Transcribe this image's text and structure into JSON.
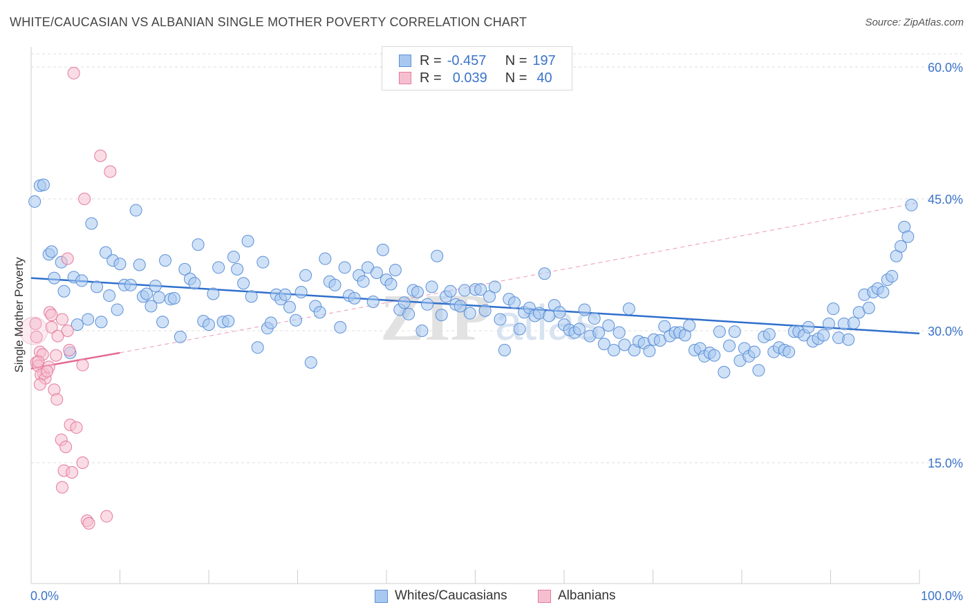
{
  "title": "WHITE/CAUCASIAN VS ALBANIAN SINGLE MOTHER POVERTY CORRELATION CHART",
  "source": "Source: ZipAtlas.com",
  "watermark": "ZIPatlas",
  "legend": {
    "rows": [
      {
        "r_label": "R =",
        "r_value": "-0.457",
        "n_label": "N =",
        "n_value": "197",
        "color": "#a8c8f0",
        "border": "#5b8fd6"
      },
      {
        "r_label": "R =",
        "r_value": "0.039",
        "n_label": "N =",
        "n_value": "40",
        "color": "#f6bfd0",
        "border": "#e47a9e"
      }
    ]
  },
  "bottom_legend": [
    {
      "label": "Whites/Caucasians",
      "color": "#a8c8f0",
      "border": "#5b8fd6"
    },
    {
      "label": "Albanians",
      "color": "#f6bfd0",
      "border": "#e47a9e"
    }
  ],
  "chart_data": {
    "type": "scatter",
    "title": "WHITE/CAUCASIAN VS ALBANIAN SINGLE MOTHER POVERTY CORRELATION CHART",
    "xlabel": "",
    "ylabel": "Single Mother Poverty",
    "xlim": [
      0,
      100
    ],
    "ylim": [
      0,
      60
    ],
    "x_tick_labels": [
      "0.0%",
      "100.0%"
    ],
    "y_ticks": [
      15,
      30,
      45,
      60
    ],
    "y_tick_labels": [
      "15.0%",
      "30.0%",
      "45.0%",
      "60.0%"
    ],
    "grid": true,
    "legend_position": "top-center",
    "series": [
      {
        "name": "Whites/Caucasians",
        "color": "#a8c8f0",
        "edge": "#5b8fd6",
        "trend": {
          "x": [
            0,
            100
          ],
          "y": [
            36.0,
            29.7
          ],
          "color": "#2f6fcc",
          "style": "solid"
        },
        "points": [
          [
            0.4,
            44.7
          ],
          [
            1.0,
            46.5
          ],
          [
            1.4,
            46.6
          ],
          [
            2.0,
            38.7
          ],
          [
            2.3,
            39.0
          ],
          [
            2.6,
            36.0
          ],
          [
            3.4,
            37.8
          ],
          [
            3.7,
            34.5
          ],
          [
            4.4,
            27.5
          ],
          [
            4.8,
            36.1
          ],
          [
            5.2,
            30.7
          ],
          [
            5.7,
            35.7
          ],
          [
            6.4,
            31.3
          ],
          [
            6.8,
            42.2
          ],
          [
            7.4,
            35.0
          ],
          [
            7.9,
            31.0
          ],
          [
            8.4,
            38.9
          ],
          [
            8.8,
            34.0
          ],
          [
            9.2,
            38.0
          ],
          [
            9.7,
            32.4
          ],
          [
            10.0,
            37.6
          ],
          [
            10.5,
            35.2
          ],
          [
            11.2,
            35.2
          ],
          [
            11.8,
            43.7
          ],
          [
            12.2,
            37.5
          ],
          [
            12.6,
            33.9
          ],
          [
            13.0,
            34.2
          ],
          [
            13.5,
            32.8
          ],
          [
            14.0,
            35.1
          ],
          [
            14.4,
            33.8
          ],
          [
            14.8,
            31.0
          ],
          [
            15.1,
            38.0
          ],
          [
            15.7,
            33.6
          ],
          [
            16.1,
            33.7
          ],
          [
            16.8,
            29.3
          ],
          [
            17.3,
            37.0
          ],
          [
            17.9,
            35.9
          ],
          [
            18.4,
            35.4
          ],
          [
            18.8,
            39.8
          ],
          [
            19.4,
            31.1
          ],
          [
            20.0,
            30.7
          ],
          [
            20.5,
            34.2
          ],
          [
            21.1,
            37.2
          ],
          [
            21.6,
            31.0
          ],
          [
            22.2,
            31.1
          ],
          [
            22.8,
            38.4
          ],
          [
            23.2,
            37.0
          ],
          [
            23.9,
            35.4
          ],
          [
            24.4,
            40.2
          ],
          [
            24.8,
            33.9
          ],
          [
            25.5,
            28.1
          ],
          [
            26.1,
            37.8
          ],
          [
            26.6,
            30.3
          ],
          [
            27.0,
            30.9
          ],
          [
            27.6,
            34.1
          ],
          [
            28.1,
            33.6
          ],
          [
            28.6,
            34.1
          ],
          [
            29.1,
            32.7
          ],
          [
            29.8,
            31.2
          ],
          [
            30.4,
            34.4
          ],
          [
            30.9,
            36.3
          ],
          [
            31.5,
            26.4
          ],
          [
            32.0,
            32.8
          ],
          [
            32.5,
            32.1
          ],
          [
            33.1,
            38.2
          ],
          [
            33.6,
            35.6
          ],
          [
            34.2,
            35.2
          ],
          [
            34.8,
            30.4
          ],
          [
            35.3,
            37.2
          ],
          [
            35.8,
            34.0
          ],
          [
            36.4,
            33.7
          ],
          [
            36.9,
            36.3
          ],
          [
            37.4,
            35.6
          ],
          [
            37.9,
            37.2
          ],
          [
            38.5,
            33.3
          ],
          [
            38.9,
            36.6
          ],
          [
            39.6,
            39.2
          ],
          [
            40.0,
            35.8
          ],
          [
            40.5,
            35.3
          ],
          [
            41.0,
            36.9
          ],
          [
            41.5,
            32.4
          ],
          [
            42.0,
            33.2
          ],
          [
            42.5,
            31.9
          ],
          [
            43.0,
            34.6
          ],
          [
            43.5,
            34.4
          ],
          [
            44.0,
            30.0
          ],
          [
            44.6,
            33.0
          ],
          [
            45.1,
            35.0
          ],
          [
            45.7,
            38.5
          ],
          [
            46.2,
            31.8
          ],
          [
            46.7,
            33.9
          ],
          [
            47.2,
            34.5
          ],
          [
            47.8,
            33.0
          ],
          [
            48.3,
            32.8
          ],
          [
            48.8,
            34.6
          ],
          [
            49.4,
            32.0
          ],
          [
            50.0,
            34.7
          ],
          [
            50.6,
            34.7
          ],
          [
            51.1,
            32.3
          ],
          [
            51.6,
            33.9
          ],
          [
            52.2,
            35.0
          ],
          [
            52.8,
            31.3
          ],
          [
            53.3,
            27.8
          ],
          [
            53.8,
            33.6
          ],
          [
            54.4,
            33.2
          ],
          [
            55.0,
            30.2
          ],
          [
            55.5,
            32.1
          ],
          [
            56.1,
            32.6
          ],
          [
            56.7,
            31.7
          ],
          [
            57.2,
            32.0
          ],
          [
            57.8,
            36.5
          ],
          [
            58.3,
            31.7
          ],
          [
            58.9,
            32.9
          ],
          [
            59.5,
            32.1
          ],
          [
            60.0,
            30.7
          ],
          [
            60.6,
            30.1
          ],
          [
            61.2,
            29.8
          ],
          [
            61.7,
            30.2
          ],
          [
            62.3,
            32.4
          ],
          [
            62.9,
            29.4
          ],
          [
            63.4,
            31.4
          ],
          [
            63.9,
            29.8
          ],
          [
            64.5,
            28.5
          ],
          [
            65.0,
            30.6
          ],
          [
            65.6,
            27.8
          ],
          [
            66.2,
            29.8
          ],
          [
            66.8,
            28.4
          ],
          [
            67.3,
            32.5
          ],
          [
            67.9,
            27.8
          ],
          [
            68.4,
            28.8
          ],
          [
            69.0,
            28.6
          ],
          [
            69.6,
            27.7
          ],
          [
            70.1,
            29.0
          ],
          [
            70.8,
            28.9
          ],
          [
            71.3,
            30.5
          ],
          [
            71.9,
            29.4
          ],
          [
            72.5,
            29.8
          ],
          [
            73.0,
            29.8
          ],
          [
            73.6,
            29.5
          ],
          [
            74.1,
            30.6
          ],
          [
            74.7,
            27.8
          ],
          [
            75.3,
            28.0
          ],
          [
            75.8,
            27.1
          ],
          [
            76.4,
            27.5
          ],
          [
            76.9,
            27.2
          ],
          [
            77.5,
            29.9
          ],
          [
            78.0,
            25.3
          ],
          [
            78.6,
            28.3
          ],
          [
            79.2,
            29.9
          ],
          [
            79.8,
            26.6
          ],
          [
            80.3,
            28.0
          ],
          [
            80.8,
            27.1
          ],
          [
            81.4,
            27.6
          ],
          [
            81.9,
            25.5
          ],
          [
            82.5,
            29.3
          ],
          [
            83.1,
            29.6
          ],
          [
            83.6,
            27.6
          ],
          [
            84.2,
            28.1
          ],
          [
            84.8,
            27.8
          ],
          [
            85.3,
            27.6
          ],
          [
            85.9,
            29.9
          ],
          [
            86.4,
            29.9
          ],
          [
            87.0,
            29.5
          ],
          [
            87.5,
            30.4
          ],
          [
            88.0,
            28.8
          ],
          [
            88.6,
            29.1
          ],
          [
            89.2,
            29.5
          ],
          [
            89.8,
            30.8
          ],
          [
            90.3,
            32.5
          ],
          [
            90.9,
            29.2
          ],
          [
            91.5,
            30.8
          ],
          [
            92.0,
            29.0
          ],
          [
            92.6,
            30.9
          ],
          [
            93.2,
            32.1
          ],
          [
            93.8,
            34.1
          ],
          [
            94.3,
            32.6
          ],
          [
            94.8,
            34.4
          ],
          [
            95.3,
            34.8
          ],
          [
            95.9,
            34.4
          ],
          [
            96.4,
            35.8
          ],
          [
            96.9,
            36.2
          ],
          [
            97.4,
            38.5
          ],
          [
            97.9,
            39.6
          ],
          [
            98.3,
            41.8
          ],
          [
            98.7,
            40.7
          ],
          [
            99.1,
            44.3
          ]
        ]
      },
      {
        "name": "Albanians",
        "color": "#f6bfd0",
        "edge": "#e47a9e",
        "trend": {
          "x": [
            0,
            10
          ],
          "y": [
            25.7,
            27.5
          ],
          "color": "#e46a96",
          "style": "solid",
          "extended": {
            "x": [
              10,
              100
            ],
            "y": [
              27.5,
              44.6
            ],
            "style": "dashed"
          }
        },
        "points": [
          [
            4.8,
            59.3
          ],
          [
            7.8,
            49.9
          ],
          [
            8.9,
            48.1
          ],
          [
            6.0,
            45.0
          ],
          [
            4.1,
            38.2
          ],
          [
            2.1,
            32.1
          ],
          [
            2.3,
            31.8
          ],
          [
            3.5,
            31.3
          ],
          [
            2.3,
            30.4
          ],
          [
            4.1,
            30.0
          ],
          [
            3.0,
            29.4
          ],
          [
            0.5,
            30.8
          ],
          [
            0.6,
            29.3
          ],
          [
            1.0,
            27.6
          ],
          [
            1.3,
            27.3
          ],
          [
            2.8,
            27.2
          ],
          [
            4.3,
            27.8
          ],
          [
            0.6,
            26.4
          ],
          [
            0.8,
            26.0
          ],
          [
            1.4,
            25.1
          ],
          [
            2.0,
            25.9
          ],
          [
            5.8,
            26.1
          ],
          [
            1.1,
            25.0
          ],
          [
            1.6,
            24.6
          ],
          [
            1.0,
            23.9
          ],
          [
            2.6,
            23.3
          ],
          [
            2.9,
            22.2
          ],
          [
            4.4,
            19.3
          ],
          [
            5.1,
            19.0
          ],
          [
            3.4,
            17.6
          ],
          [
            3.9,
            16.8
          ],
          [
            5.8,
            15.0
          ],
          [
            3.7,
            14.1
          ],
          [
            4.6,
            13.9
          ],
          [
            3.5,
            12.2
          ],
          [
            6.3,
            8.4
          ],
          [
            6.5,
            8.1
          ],
          [
            8.5,
            8.9
          ],
          [
            0.8,
            26.5
          ],
          [
            1.8,
            25.4
          ]
        ]
      }
    ]
  }
}
